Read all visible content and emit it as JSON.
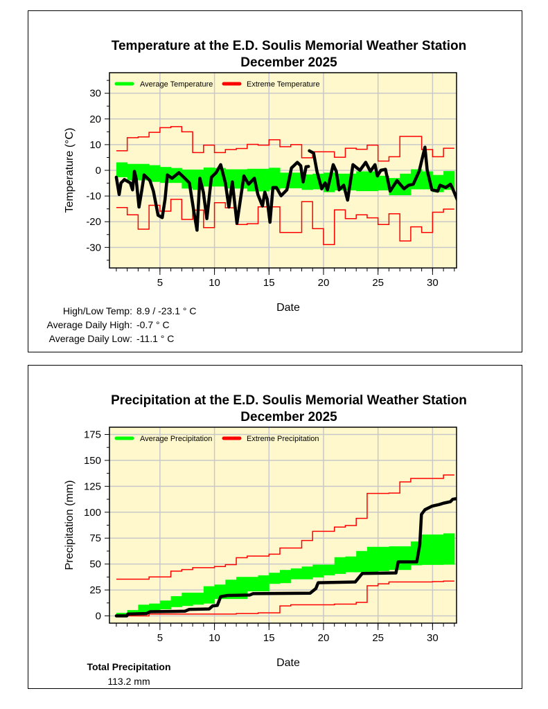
{
  "chart_data": [
    {
      "id": "temp",
      "type": "line",
      "title": "Temperature at the E.D. Soulis Memorial Weather Station",
      "subtitle": "December 2025",
      "xlabel": "Date",
      "ylabel": "Temperature (°C)",
      "xlim": [
        0.37,
        32.2
      ],
      "ylim": [
        -38,
        38
      ],
      "xticks": [
        5,
        10,
        15,
        20,
        25,
        30
      ],
      "yticks": [
        -30,
        -20,
        -10,
        0,
        10,
        20,
        30
      ],
      "grid": true,
      "legend": {
        "placement": "top-left",
        "entries": [
          {
            "label": "Average Temperature",
            "color": "#00ff00"
          },
          {
            "label": "Extreme Temperature",
            "color": "#ff0000"
          }
        ]
      },
      "extreme_high": [
        7.6,
        12.7,
        13.0,
        14.8,
        16.6,
        17.0,
        15.0,
        6.9,
        9.8,
        6.9,
        8.1,
        8.5,
        10.1,
        9.8,
        11.9,
        9.2,
        10.0,
        4.9,
        7.2,
        7.2,
        5.1,
        8.6,
        8.2,
        9.8,
        3.6,
        5.3,
        13.2,
        13.2,
        8.1,
        5.3,
        8.6
      ],
      "extreme_low": [
        -14.5,
        -17.3,
        -22.9,
        -13.6,
        -15.9,
        -11.3,
        -19.1,
        -15.5,
        -22.3,
        -12.6,
        -14.6,
        -21.1,
        -20.8,
        -14.2,
        -14.2,
        -24.2,
        -24.2,
        -12.2,
        -22.7,
        -28.9,
        -15.4,
        -18.8,
        -17.3,
        -18.5,
        -21.1,
        -16.9,
        -27.5,
        -22.0,
        -24.2,
        -16.3,
        -15.1
      ],
      "average_high": [
        3.1,
        2.5,
        2.5,
        2.0,
        1.3,
        0.9,
        0.3,
        0.3,
        1.1,
        0.9,
        0.4,
        0.4,
        0.6,
        0.6,
        1.0,
        -0.9,
        -0.9,
        -1.6,
        -1.3,
        -0.9,
        -1.3,
        -1.3,
        -0.4,
        -0.4,
        -2.1,
        -3.0,
        -1.3,
        0.4,
        -0.4,
        -1.8,
        -0.3
      ],
      "average_low": [
        -2.7,
        -3.9,
        -3.9,
        -4.5,
        -4.9,
        -4.9,
        -7.1,
        -7.6,
        -6.3,
        -6.3,
        -7.1,
        -7.1,
        -8.2,
        -8.2,
        -7.6,
        -7.0,
        -7.0,
        -7.6,
        -7.4,
        -8.5,
        -7.8,
        -7.8,
        -8.1,
        -8.1,
        -7.8,
        -9.7,
        -9.7,
        -7.4,
        -7.4,
        -8.5,
        -7.6
      ],
      "observed_segments": [
        [
          [
            1.0,
            -2.7
          ],
          [
            1.26,
            -9.4
          ],
          [
            1.43,
            -4.9
          ],
          [
            1.74,
            -3.6
          ],
          [
            2.28,
            -4.9
          ],
          [
            2.49,
            -7.6
          ],
          [
            2.66,
            -0.4
          ],
          [
            2.81,
            -3.1
          ],
          [
            3.08,
            -14.3
          ],
          [
            3.34,
            -7.6
          ],
          [
            3.55,
            -1.8
          ],
          [
            4.08,
            -4.0
          ],
          [
            4.4,
            -8.1
          ],
          [
            4.83,
            -17.5
          ],
          [
            5.21,
            -18.4
          ],
          [
            5.47,
            -11.2
          ],
          [
            5.68,
            -1.8
          ],
          [
            6.11,
            -3.1
          ],
          [
            6.74,
            -0.9
          ],
          [
            7.28,
            -3.1
          ],
          [
            7.7,
            -4.9
          ],
          [
            8.13,
            -16.6
          ],
          [
            8.4,
            -23.3
          ],
          [
            8.66,
            -3.1
          ],
          [
            8.98,
            -8.5
          ],
          [
            9.3,
            -18.8
          ],
          [
            9.72,
            -2.7
          ],
          [
            10.15,
            -0.9
          ],
          [
            10.57,
            2.2
          ],
          [
            11.0,
            -4.9
          ],
          [
            11.32,
            -14.3
          ],
          [
            11.64,
            -4.5
          ],
          [
            12.06,
            -20.6
          ],
          [
            12.7,
            -2.2
          ],
          [
            13.13,
            -5.4
          ],
          [
            13.66,
            -3.1
          ],
          [
            13.98,
            -9.4
          ],
          [
            14.4,
            -13.9
          ],
          [
            14.62,
            -8.5
          ],
          [
            14.83,
            -11.2
          ],
          [
            15.09,
            -20.2
          ],
          [
            15.36,
            -6.7
          ],
          [
            15.68,
            -6.7
          ],
          [
            16.11,
            -9.9
          ],
          [
            16.64,
            -7.6
          ],
          [
            17.06,
            0.9
          ],
          [
            17.6,
            3.1
          ],
          [
            17.91,
            1.8
          ],
          [
            18.13,
            -4.5
          ],
          [
            18.4,
            1.4
          ],
          [
            18.62,
            1.5
          ]
        ],
        [
          [
            18.7,
            7.6
          ],
          [
            19.09,
            6.7
          ],
          [
            19.4,
            -0.4
          ],
          [
            19.83,
            -7.2
          ],
          [
            20.15,
            -4.9
          ],
          [
            20.36,
            -7.6
          ],
          [
            20.89,
            2.2
          ],
          [
            21.17,
            -0.4
          ],
          [
            21.43,
            -7.6
          ],
          [
            21.85,
            -5.8
          ],
          [
            22.21,
            -11.6
          ],
          [
            22.7,
            2.2
          ],
          [
            23.34,
            0.0
          ],
          [
            23.87,
            3.1
          ],
          [
            24.3,
            -0.4
          ],
          [
            24.72,
            2.2
          ],
          [
            24.94,
            -2.2
          ],
          [
            25.26,
            0.0
          ],
          [
            25.68,
            0.4
          ],
          [
            26.11,
            -8.1
          ],
          [
            26.74,
            -4.0
          ],
          [
            27.38,
            -7.2
          ],
          [
            27.81,
            -5.8
          ],
          [
            28.23,
            -5.4
          ],
          [
            28.77,
            -0.4
          ],
          [
            29.3,
            9.0
          ],
          [
            29.51,
            0.0
          ],
          [
            29.94,
            -7.6
          ],
          [
            30.47,
            -8.1
          ],
          [
            30.68,
            -5.8
          ],
          [
            31.21,
            -6.7
          ],
          [
            31.64,
            -5.4
          ],
          [
            31.85,
            -7.2
          ],
          [
            32.28,
            -11.6
          ]
        ]
      ],
      "stats": [
        {
          "label": "High/Low Temp:",
          "value": "8.9 / -23.1 ° C"
        },
        {
          "label": "Average Daily High:",
          "value": "-0.7 ° C"
        },
        {
          "label": "Average Daily Low:",
          "value": "-11.1 ° C"
        }
      ]
    },
    {
      "id": "precip",
      "type": "line",
      "title": "Precipitation at the E.D. Soulis Memorial Weather Station",
      "subtitle": "December 2025",
      "xlabel": "Date",
      "ylabel": "Precipitation (mm)",
      "xlim": [
        0.37,
        32.2
      ],
      "ylim": [
        -7,
        182
      ],
      "xticks": [
        5,
        10,
        15,
        20,
        25,
        30
      ],
      "yticks": [
        0,
        25,
        50,
        75,
        100,
        125,
        150,
        175
      ],
      "grid": true,
      "legend": {
        "placement": "top-left",
        "entries": [
          {
            "label": "Average Precipitation",
            "color": "#00ff00"
          },
          {
            "label": "Extreme Precipitation",
            "color": "#ff0000"
          }
        ]
      },
      "extreme_high": [
        35.4,
        35.4,
        35.4,
        37.6,
        37.6,
        43.2,
        44.7,
        46.5,
        46.5,
        47.6,
        49.4,
        56.1,
        57.7,
        57.7,
        59.5,
        65.5,
        65.5,
        72.7,
        81.6,
        81.6,
        85.7,
        87.2,
        94.1,
        118.1,
        118.1,
        118.5,
        129.2,
        132.6,
        132.6,
        132.6,
        135.9
      ],
      "extreme_low": [
        0,
        0,
        0,
        1.8,
        1.8,
        1.8,
        1.8,
        1.8,
        1.8,
        1.8,
        1.8,
        2.3,
        2.3,
        2.9,
        2.9,
        9.6,
        10.7,
        10.7,
        10.7,
        10.7,
        11.4,
        11.4,
        13.0,
        29.1,
        30.9,
        32.7,
        32.7,
        32.7,
        32.7,
        33.1,
        33.6
      ],
      "average_high": [
        2.9,
        5.6,
        10.8,
        11.9,
        14.8,
        19.0,
        22.4,
        22.4,
        28.6,
        30.2,
        34.9,
        37.6,
        37.6,
        39.1,
        41.6,
        44.3,
        45.8,
        47.6,
        49.4,
        49.4,
        56.6,
        57.3,
        62.6,
        66.6,
        66.6,
        67.1,
        67.1,
        71.8,
        78.5,
        78.5,
        79.6
      ],
      "average_low": [
        0,
        0.7,
        2.9,
        4.0,
        6.3,
        8.5,
        9.6,
        10.8,
        11.9,
        16.3,
        16.3,
        16.3,
        23.7,
        23.7,
        30.9,
        31.6,
        35.3,
        35.3,
        37.1,
        39.1,
        40.5,
        42.1,
        42.1,
        42.5,
        43.2,
        44.3,
        44.3,
        48.8,
        49.2,
        49.2,
        49.4
      ],
      "observed_segments": [
        [
          [
            1.0,
            0
          ],
          [
            1.96,
            0
          ],
          [
            2.06,
            1.8
          ],
          [
            3.77,
            2.3
          ],
          [
            4.09,
            4.0
          ],
          [
            7.28,
            4.5
          ],
          [
            7.7,
            6.3
          ],
          [
            9.51,
            6.7
          ],
          [
            9.83,
            9.6
          ],
          [
            10.26,
            10.1
          ],
          [
            10.57,
            18.6
          ],
          [
            11.21,
            19.7
          ],
          [
            13.23,
            20.1
          ],
          [
            13.55,
            21.5
          ],
          [
            18.77,
            21.9
          ],
          [
            19.3,
            26.4
          ],
          [
            19.51,
            32.0
          ],
          [
            22.91,
            32.7
          ],
          [
            23.55,
            40.9
          ],
          [
            26.64,
            41.4
          ],
          [
            26.85,
            52.1
          ],
          [
            28.55,
            52.1
          ],
          [
            28.83,
            68.9
          ],
          [
            28.98,
            97.9
          ],
          [
            29.3,
            102.4
          ],
          [
            29.94,
            105.8
          ],
          [
            30.57,
            107.3
          ],
          [
            31.0,
            108.7
          ],
          [
            31.64,
            110.2
          ],
          [
            31.85,
            112.5
          ],
          [
            32.28,
            113.2
          ]
        ]
      ],
      "stats": [
        {
          "label": "Total Precipitation",
          "value": "113.2 mm"
        }
      ]
    }
  ],
  "colors": {
    "plot_bg": "#fff8cc",
    "grid": "#c8c8c8",
    "average": "#00ff00",
    "extreme": "#ff0000",
    "observed": "#000000"
  }
}
